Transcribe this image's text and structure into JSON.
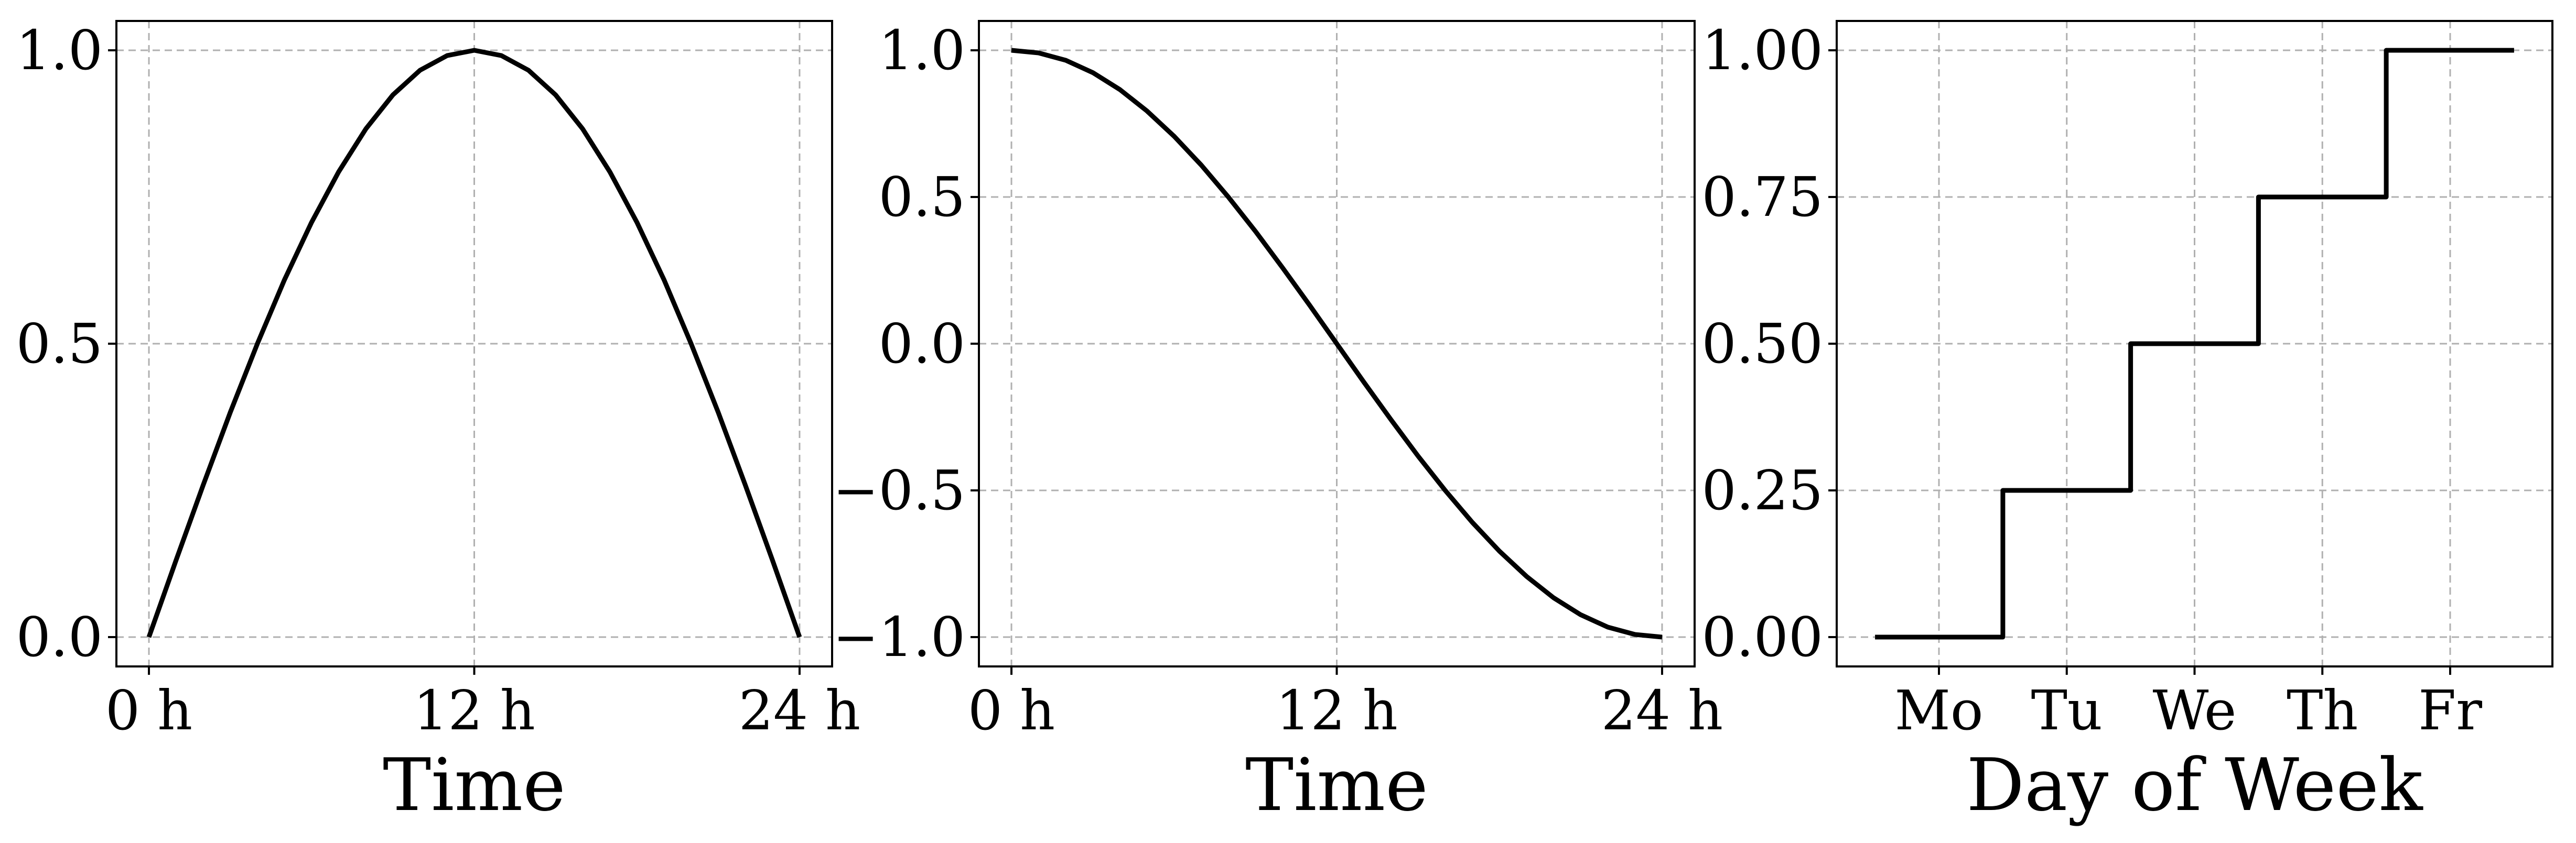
{
  "chart_data": [
    {
      "type": "line",
      "xlabel": "Time",
      "ylabel": "",
      "title": "",
      "xlim": [
        -1.2,
        25.2
      ],
      "ylim": [
        -0.05,
        1.05
      ],
      "xticks": [
        {
          "value": 0,
          "label": "0 h"
        },
        {
          "value": 12,
          "label": "12 h"
        },
        {
          "value": 24,
          "label": "24 h"
        }
      ],
      "yticks": [
        {
          "value": 0.0,
          "label": "0.0"
        },
        {
          "value": 0.5,
          "label": "0.5"
        },
        {
          "value": 1.0,
          "label": "1.0"
        }
      ],
      "grid": true,
      "color": "#000000",
      "series": [
        {
          "x": [
            0,
            1,
            2,
            3,
            4,
            5,
            6,
            7,
            8,
            9,
            10,
            11,
            12,
            13,
            14,
            15,
            16,
            17,
            18,
            19,
            20,
            21,
            22,
            23,
            24
          ],
          "y": [
            0.0,
            0.131,
            0.259,
            0.383,
            0.5,
            0.609,
            0.707,
            0.793,
            0.866,
            0.924,
            0.966,
            0.991,
            1.0,
            0.991,
            0.966,
            0.924,
            0.866,
            0.793,
            0.707,
            0.609,
            0.5,
            0.383,
            0.259,
            0.131,
            0.0
          ]
        }
      ]
    },
    {
      "type": "line",
      "xlabel": "Time",
      "ylabel": "",
      "title": "",
      "xlim": [
        -1.2,
        25.2
      ],
      "ylim": [
        -1.1,
        1.1
      ],
      "xticks": [
        {
          "value": 0,
          "label": "0 h"
        },
        {
          "value": 12,
          "label": "12 h"
        },
        {
          "value": 24,
          "label": "24 h"
        }
      ],
      "yticks": [
        {
          "value": 1.0,
          "label": "1.0"
        },
        {
          "value": 0.5,
          "label": "0.5"
        },
        {
          "value": 0.0,
          "label": "0.0"
        },
        {
          "value": -0.5,
          "label": "−0.5"
        },
        {
          "value": -1.0,
          "label": "−1.0"
        }
      ],
      "grid": true,
      "color": "#000000",
      "series": [
        {
          "x": [
            0,
            1,
            2,
            3,
            4,
            5,
            6,
            7,
            8,
            9,
            10,
            11,
            12,
            13,
            14,
            15,
            16,
            17,
            18,
            19,
            20,
            21,
            22,
            23,
            24
          ],
          "y": [
            1.0,
            0.991,
            0.966,
            0.924,
            0.866,
            0.793,
            0.707,
            0.609,
            0.5,
            0.383,
            0.259,
            0.131,
            0.0,
            -0.131,
            -0.259,
            -0.383,
            -0.5,
            -0.609,
            -0.707,
            -0.793,
            -0.866,
            -0.924,
            -0.966,
            -0.991,
            -1.0
          ]
        }
      ]
    },
    {
      "type": "line",
      "step": true,
      "xlabel": "Day of Week",
      "ylabel": "",
      "title": "",
      "xlim": [
        -0.8,
        4.8
      ],
      "ylim": [
        -0.05,
        1.05
      ],
      "xticks": [
        {
          "value": 0,
          "label": "Mo"
        },
        {
          "value": 1,
          "label": "Tu"
        },
        {
          "value": 2,
          "label": "We"
        },
        {
          "value": 3,
          "label": "Th"
        },
        {
          "value": 4,
          "label": "Fr"
        }
      ],
      "yticks": [
        {
          "value": 0.0,
          "label": "0.00"
        },
        {
          "value": 0.25,
          "label": "0.25"
        },
        {
          "value": 0.5,
          "label": "0.50"
        },
        {
          "value": 0.75,
          "label": "0.75"
        },
        {
          "value": 1.0,
          "label": "1.00"
        }
      ],
      "grid": true,
      "color": "#000000",
      "series": [
        {
          "x": [
            -0.5,
            0.5,
            0.5,
            1.5,
            1.5,
            2.5,
            2.5,
            3.5,
            3.5,
            4.5
          ],
          "y": [
            0.0,
            0.0,
            0.25,
            0.25,
            0.5,
            0.5,
            0.75,
            0.75,
            1.0,
            1.0
          ]
        }
      ]
    }
  ]
}
